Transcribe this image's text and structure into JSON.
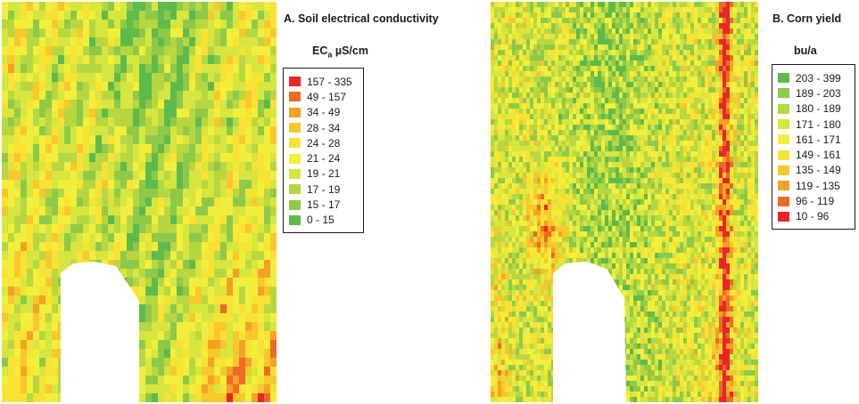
{
  "panel_a": {
    "title": "A. Soil electrical conductivity",
    "unit_main": "EC",
    "unit_sub": "a",
    "unit_rest": " µS/cm",
    "legend": [
      {
        "label": "157 - 335",
        "color": "#e8262a"
      },
      {
        "label": "49 - 157",
        "color": "#ee6a25"
      },
      {
        "label": "34 - 49",
        "color": "#f4a124"
      },
      {
        "label": "28 - 34",
        "color": "#f8c72c"
      },
      {
        "label": "24 - 28",
        "color": "#f9e234"
      },
      {
        "label": "21 - 24",
        "color": "#f2ef3c"
      },
      {
        "label": "19 - 21",
        "color": "#d7e63e"
      },
      {
        "label": "17 - 19",
        "color": "#b6d742"
      },
      {
        "label": "15 - 17",
        "color": "#8ec94a"
      },
      {
        "label": "0 - 15",
        "color": "#5fba4c"
      }
    ]
  },
  "panel_b": {
    "title": "B. Corn yield",
    "unit": "bu/a",
    "legend": [
      {
        "label": "203 - 399",
        "color": "#5fba4c"
      },
      {
        "label": "189 - 203",
        "color": "#8ec94a"
      },
      {
        "label": "180 - 189",
        "color": "#b6d742"
      },
      {
        "label": "171 - 180",
        "color": "#d7e63e"
      },
      {
        "label": "161 - 171",
        "color": "#f2ef3c"
      },
      {
        "label": "149 - 161",
        "color": "#f9e234"
      },
      {
        "label": "135 - 149",
        "color": "#f8c72c"
      },
      {
        "label": "119 - 135",
        "color": "#f4a124"
      },
      {
        "label": "96 - 119",
        "color": "#ee6a25"
      },
      {
        "label": "10 - 96",
        "color": "#e8262a"
      }
    ]
  }
}
